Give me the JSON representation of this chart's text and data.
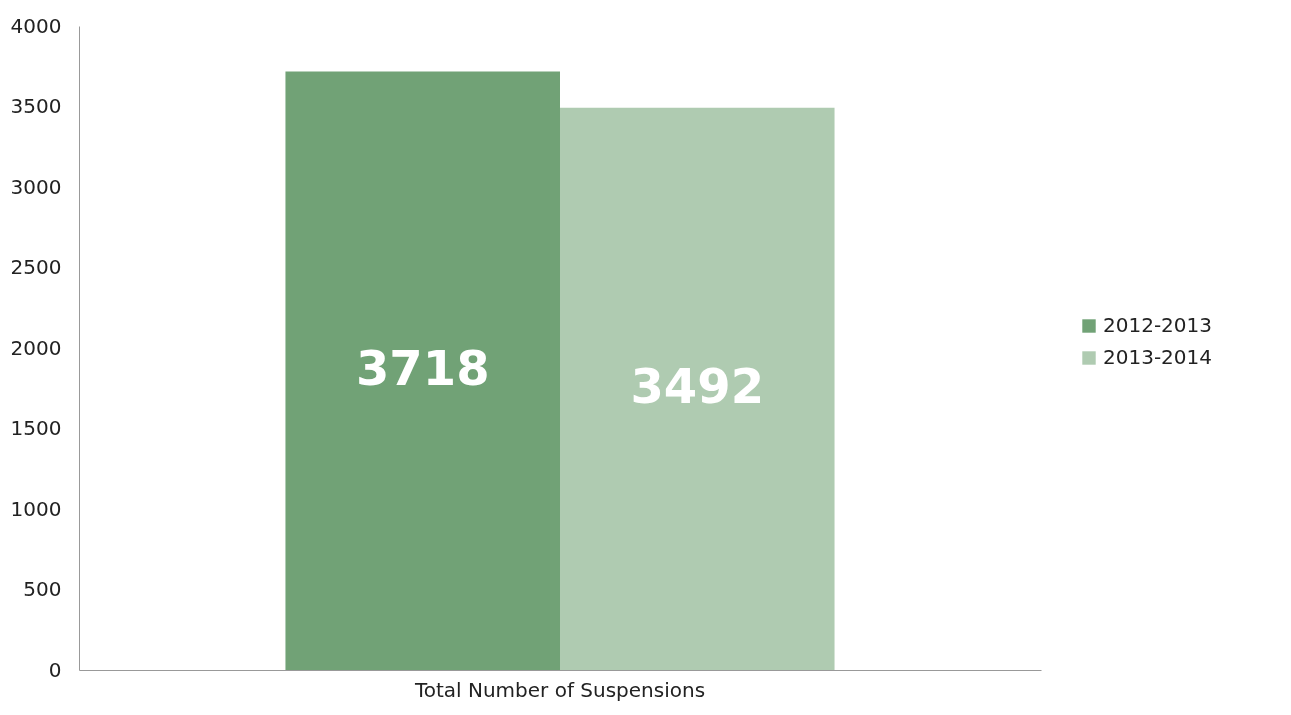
{
  "chart_data": {
    "type": "bar",
    "categories": [
      "Total Number of Suspensions"
    ],
    "series": [
      {
        "name": "2012-2013",
        "color": "#71a276",
        "values": [
          3718
        ]
      },
      {
        "name": "2013-2014",
        "color": "#afcbb1",
        "values": [
          3492
        ]
      }
    ],
    "ylim": [
      0,
      4000
    ],
    "yticks": [
      0,
      500,
      1000,
      1500,
      2000,
      2500,
      3000,
      3500,
      4000
    ],
    "grid": false,
    "legend": "right",
    "data_labels": true
  }
}
